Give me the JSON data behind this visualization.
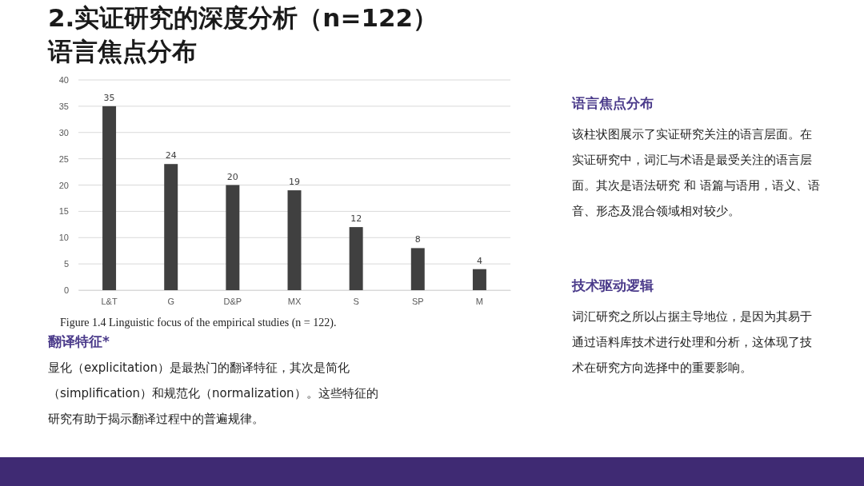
{
  "chart_data": {
    "type": "bar",
    "title": "2.实证研究的深度分析（n=122）",
    "subtitle": "语言焦点分布",
    "categories": [
      "L&T",
      "G",
      "D&P",
      "MX",
      "S",
      "SP",
      "M"
    ],
    "values": [
      35,
      24,
      20,
      19,
      12,
      8,
      4
    ],
    "color": "#404040",
    "ylim": [
      0,
      40
    ],
    "yticks": [
      0,
      5,
      10,
      15,
      20,
      25,
      30,
      35,
      40
    ],
    "grid": "y",
    "data_labels": true,
    "annotations": [
      "Figure 1.4  Linguistic focus of the empirical studies (n = 122).",
      "翻译特征*",
      "显化（explicitation）是最热门的翻译特征，其次是简化（simplification）和规范化（normalization）。这些特征的研究有助于揭示翻译过程中的普遍规律。",
      "语言焦点分布",
      "该柱状图展示了实证研究关注的语言层面。在实证研究中，词汇与术语是最受关注的语言层面。其次是语法研究 和 语篇与语用，语义、语音、形态及混合领域相对较少。",
      "技术驱动逻辑",
      "词汇研究之所以占据主导地位，是因为其易于通过语料库技术进行处理和分析，这体现了技术在研究方向选择中的重要影响。"
    ]
  }
}
